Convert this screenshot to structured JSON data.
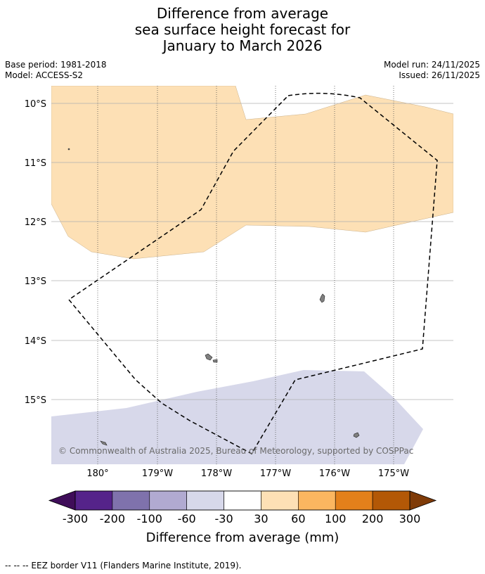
{
  "title": {
    "line1": "Difference from average",
    "line2": "sea surface height forecast for",
    "line3": "January to March 2026"
  },
  "meta": {
    "base_period": "Base period: 1981-2018",
    "model": "Model: ACCESS-S2",
    "model_run": "Model run: 24/11/2025",
    "issued": "Issued: 26/11/2025"
  },
  "map": {
    "lat_labels": [
      "10°S",
      "11°S",
      "12°S",
      "13°S",
      "14°S",
      "15°S"
    ],
    "lon_labels": [
      "180°",
      "179°W",
      "178°W",
      "177°W",
      "176°W",
      "175°W"
    ],
    "copyright": "© Commonwealth of Australia 2025, Bureau of Meteorology, supported by COSPPac",
    "colors": {
      "light_orange": "#fde0b5",
      "light_purple": "#d7d8ea",
      "land": "#808080",
      "grid": "#b0b0b0"
    }
  },
  "colorbar": {
    "ticks": [
      "-300",
      "-200",
      "-100",
      "-60",
      "-30",
      "30",
      "60",
      "100",
      "200",
      "300"
    ],
    "colors": [
      "#3f0d59",
      "#55238a",
      "#7f72ac",
      "#b1aad1",
      "#d7d8ea",
      "#ffffff",
      "#fde0b5",
      "#fbb660",
      "#e3801b",
      "#b35806",
      "#7f3b08"
    ],
    "label": "Difference from average (mm)"
  },
  "legend": {
    "eez": "--  --  -- EEZ border V11 (Flanders Marine Institute, 2019)."
  }
}
